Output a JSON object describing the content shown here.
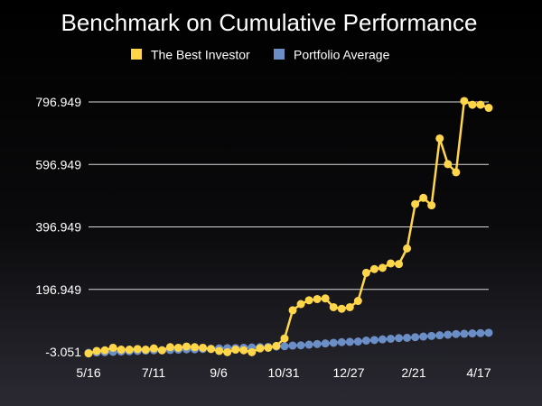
{
  "chart_data": {
    "type": "line",
    "title": "Benchmark on Cumulative Performance",
    "legend_position": "top",
    "grid": true,
    "x_tick_labels": [
      "5/16",
      "7/11",
      "9/6",
      "10/31",
      "12/27",
      "2/21",
      "4/17"
    ],
    "y_tick_labels": [
      "796.949",
      "596.949",
      "396.949",
      "196.949",
      "-3.051"
    ],
    "ylim": [
      -3.051,
      796.949
    ],
    "series": [
      {
        "name": "The Best Investor",
        "color": "#ffd54a",
        "values": [
          -8,
          0,
          2,
          10,
          4,
          4,
          6,
          4,
          8,
          2,
          12,
          10,
          14,
          12,
          10,
          6,
          0,
          -4,
          4,
          2,
          -4,
          8,
          10,
          16,
          40,
          130,
          150,
          162,
          166,
          168,
          140,
          135,
          140,
          160,
          250,
          262,
          266,
          280,
          278,
          328,
          470,
          490,
          466,
          680,
          598,
          572,
          800,
          788,
          788,
          778
        ]
      },
      {
        "name": "Portfolio Average",
        "color": "#6b8ec6",
        "values": [
          -6,
          -5,
          -4,
          -3,
          -2,
          -1,
          0,
          1,
          2,
          2,
          3,
          4,
          5,
          5,
          6,
          7,
          8,
          9,
          9,
          10,
          11,
          12,
          13,
          14,
          15,
          17,
          18,
          20,
          22,
          24,
          26,
          28,
          29,
          30,
          33,
          35,
          37,
          39,
          41,
          42,
          44,
          46,
          48,
          50,
          52,
          54,
          55,
          56,
          57,
          58
        ]
      }
    ]
  }
}
